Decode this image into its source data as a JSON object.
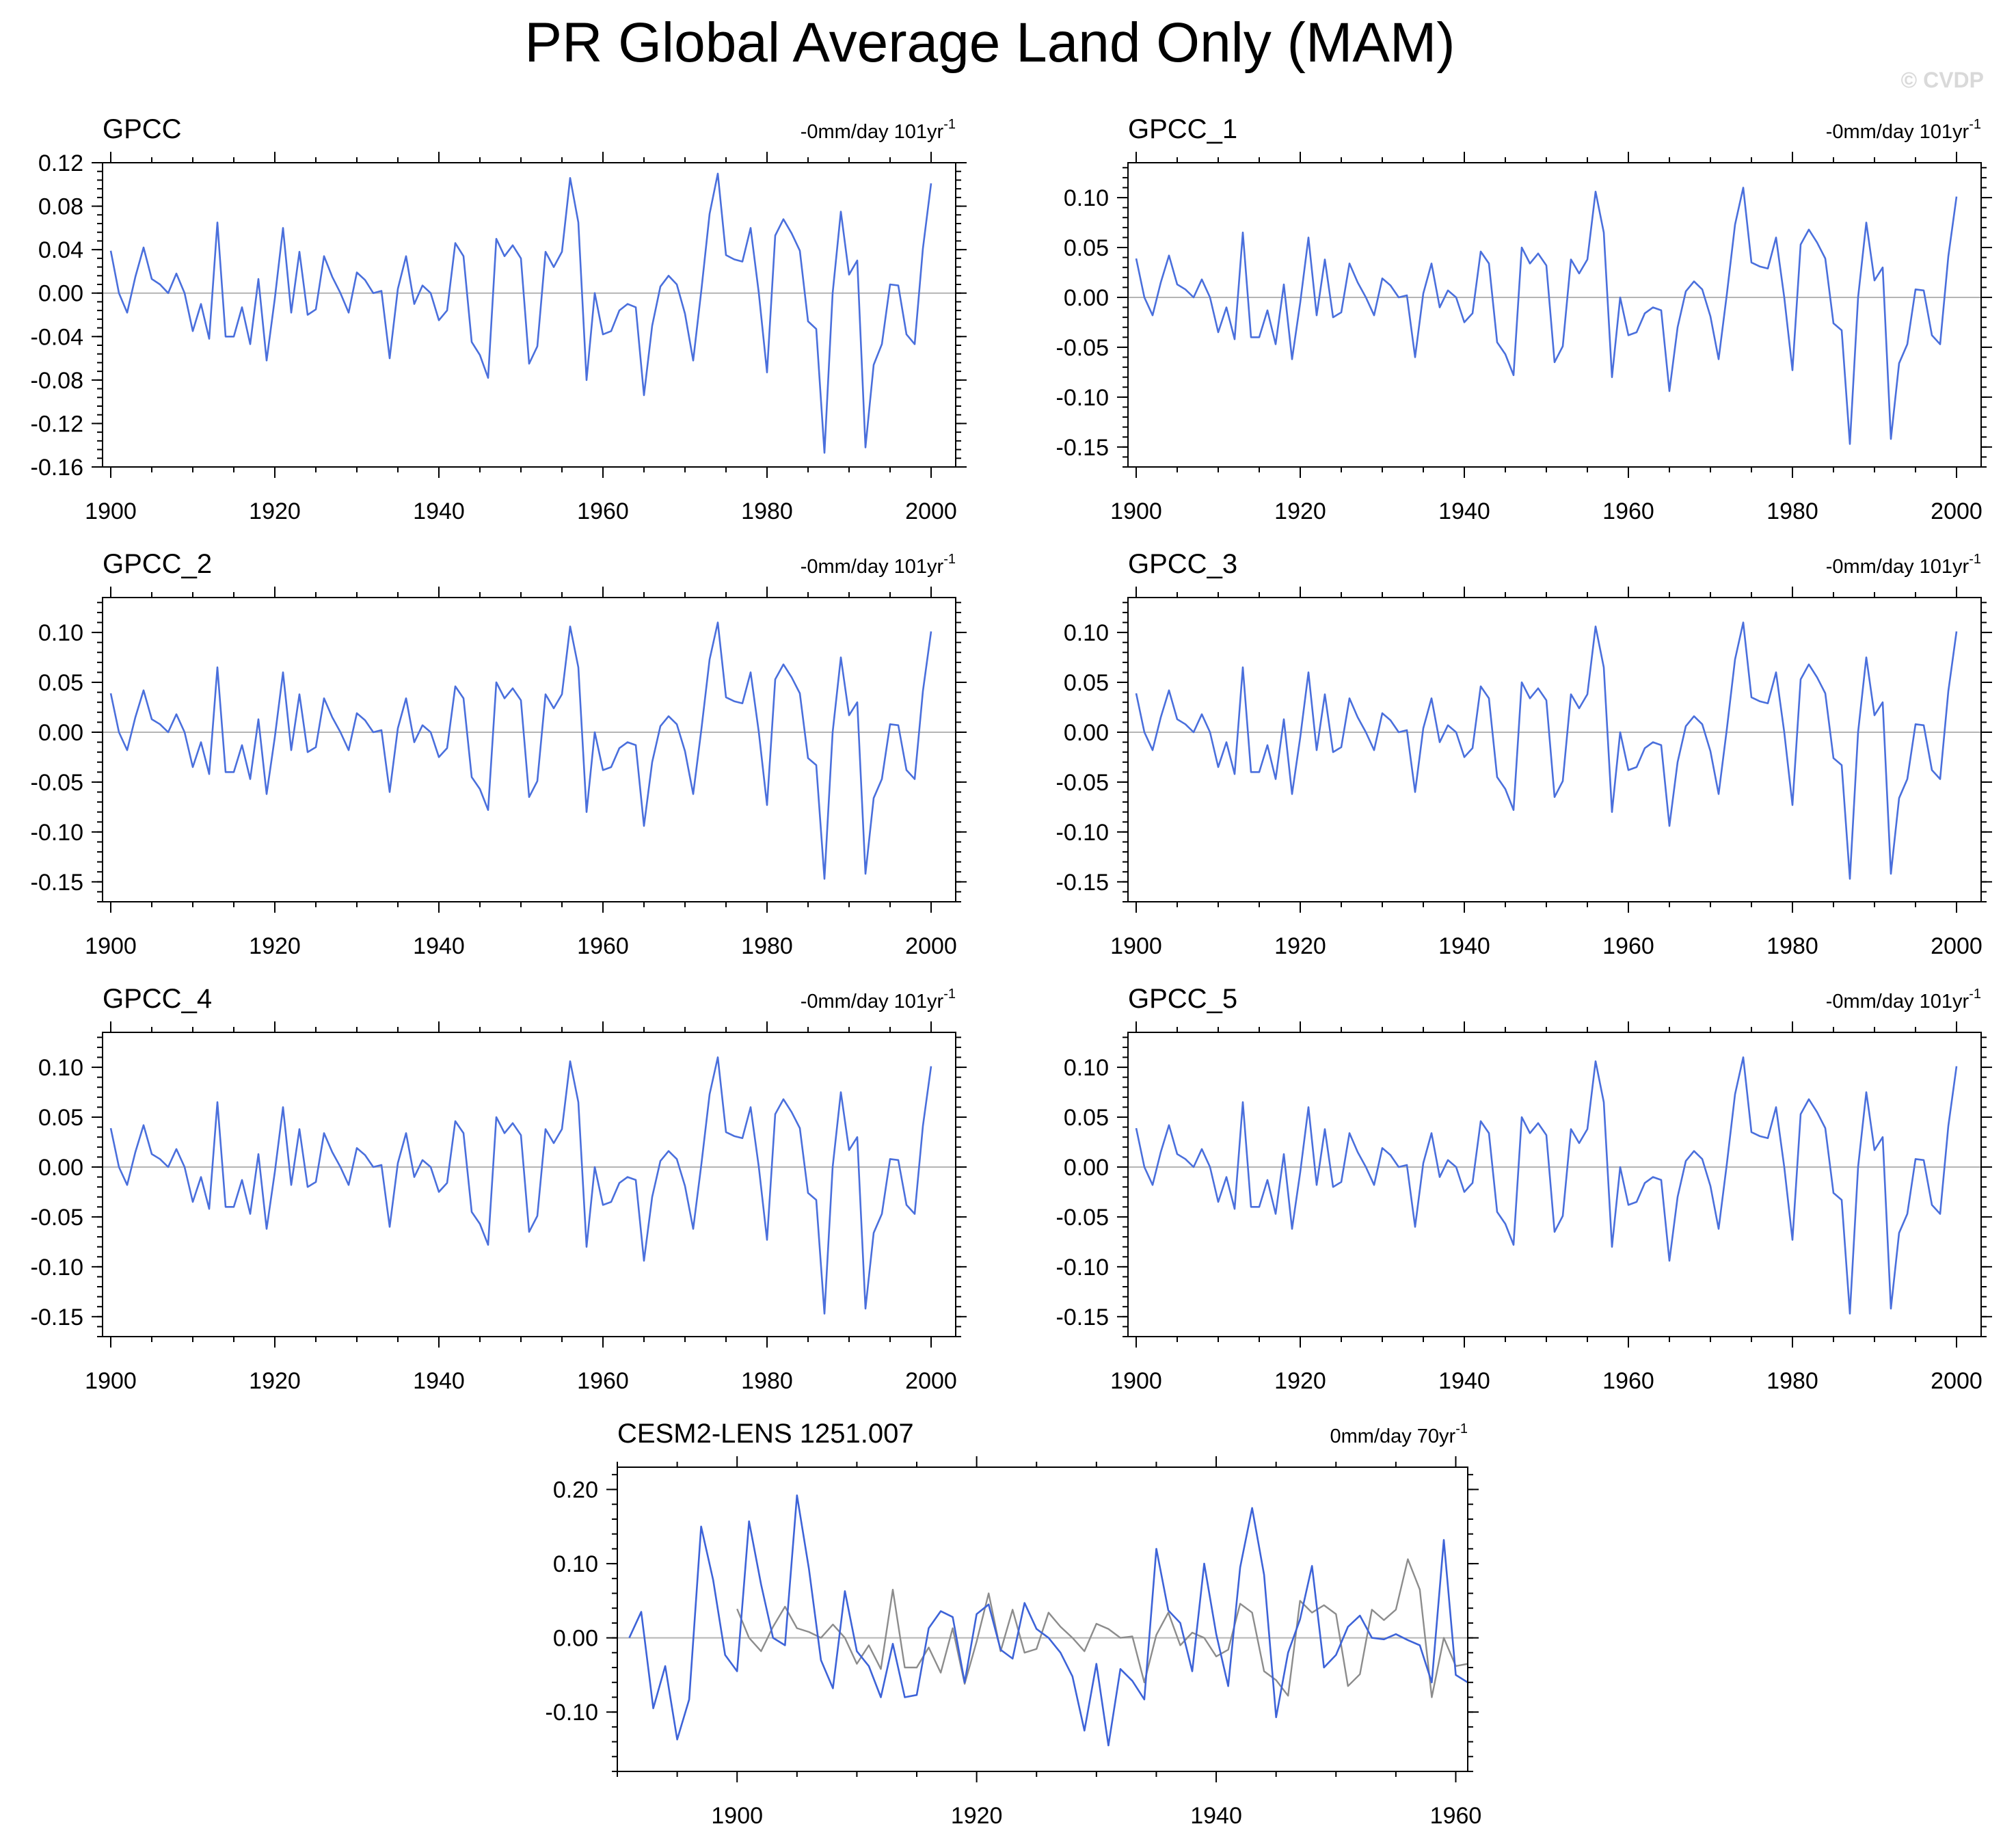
{
  "figure": {
    "title": "PR Global Average Land Only (MAM)",
    "watermark": "© CVDP"
  },
  "colors": {
    "observation": "#4a6fdc",
    "model": "#3d63d8",
    "reference": "#8c8c8c",
    "zero_line": "#b4b4b4"
  },
  "base_series": {
    "x_start": 1900,
    "values": [
      0.039,
      0.0,
      -0.018,
      0.015,
      0.042,
      0.013,
      0.008,
      0.0,
      0.018,
      0.0,
      -0.035,
      -0.01,
      -0.042,
      0.065,
      -0.04,
      -0.04,
      -0.013,
      -0.047,
      0.013,
      -0.062,
      -0.005,
      0.06,
      -0.018,
      0.038,
      -0.02,
      -0.015,
      0.034,
      0.015,
      0.0,
      -0.018,
      0.019,
      0.012,
      0.0,
      0.002,
      -0.06,
      0.004,
      0.034,
      -0.01,
      0.007,
      0.0,
      -0.025,
      -0.016,
      0.046,
      0.034,
      -0.045,
      -0.057,
      -0.078,
      0.05,
      0.034,
      0.044,
      0.032,
      -0.065,
      -0.049,
      0.038,
      0.024,
      0.038,
      0.106,
      0.065,
      -0.08,
      0.0,
      -0.038,
      -0.035,
      -0.016,
      -0.01,
      -0.013,
      -0.094,
      -0.03,
      0.006,
      0.016,
      0.008,
      -0.019,
      -0.062,
      0.003,
      0.073,
      0.11,
      0.035,
      0.031,
      0.029,
      0.06,
      0.0,
      -0.073,
      0.053,
      0.068,
      0.055,
      0.039,
      -0.026,
      -0.033,
      -0.147,
      0.0,
      0.075,
      0.017,
      0.03,
      -0.142,
      -0.066,
      -0.047,
      0.008,
      0.007,
      -0.038,
      -0.047,
      0.041,
      0.101
    ]
  },
  "chart_data": [
    {
      "type": "line",
      "panel": "GPCC",
      "title": "GPCC",
      "trend": "-0mm/day 101yr",
      "trend_exp": "-1",
      "xlim": [
        1899,
        2003
      ],
      "ylim": [
        -0.16,
        0.12
      ],
      "x_ticks": [
        1900,
        1920,
        1940,
        1960,
        1980,
        2000
      ],
      "y_ticks": [
        -0.16,
        -0.12,
        -0.08,
        -0.04,
        0.0,
        0.04,
        0.08,
        0.12
      ],
      "y_tick_labels": [
        "-0.16",
        "-0.12",
        "-0.08",
        "-0.04",
        "0.00",
        "0.04",
        "0.08",
        "0.12"
      ],
      "series": [
        {
          "ref": "base_series"
        }
      ]
    },
    {
      "type": "line",
      "panel": "GPCC_1",
      "title": "GPCC_1",
      "trend": "-0mm/day 101yr",
      "trend_exp": "-1",
      "xlim": [
        1899,
        2003
      ],
      "ylim": [
        -0.17,
        0.135
      ],
      "x_ticks": [
        1900,
        1920,
        1940,
        1960,
        1980,
        2000
      ],
      "y_ticks": [
        -0.15,
        -0.1,
        -0.05,
        0.0,
        0.05,
        0.1
      ],
      "y_tick_labels": [
        "-0.15",
        "-0.10",
        "-0.05",
        "0.00",
        "0.05",
        "0.10"
      ],
      "series": [
        {
          "ref": "base_series"
        }
      ]
    },
    {
      "type": "line",
      "panel": "GPCC_2",
      "title": "GPCC_2",
      "trend": "-0mm/day 101yr",
      "trend_exp": "-1",
      "xlim": [
        1899,
        2003
      ],
      "ylim": [
        -0.17,
        0.135
      ],
      "x_ticks": [
        1900,
        1920,
        1940,
        1960,
        1980,
        2000
      ],
      "y_ticks": [
        -0.15,
        -0.1,
        -0.05,
        0.0,
        0.05,
        0.1
      ],
      "y_tick_labels": [
        "-0.15",
        "-0.10",
        "-0.05",
        "0.00",
        "0.05",
        "0.10"
      ],
      "series": [
        {
          "ref": "base_series"
        }
      ]
    },
    {
      "type": "line",
      "panel": "GPCC_3",
      "title": "GPCC_3",
      "trend": "-0mm/day 101yr",
      "trend_exp": "-1",
      "xlim": [
        1899,
        2003
      ],
      "ylim": [
        -0.17,
        0.135
      ],
      "x_ticks": [
        1900,
        1920,
        1940,
        1960,
        1980,
        2000
      ],
      "y_ticks": [
        -0.15,
        -0.1,
        -0.05,
        0.0,
        0.05,
        0.1
      ],
      "y_tick_labels": [
        "-0.15",
        "-0.10",
        "-0.05",
        "0.00",
        "0.05",
        "0.10"
      ],
      "series": [
        {
          "ref": "base_series"
        }
      ]
    },
    {
      "type": "line",
      "panel": "GPCC_4",
      "title": "GPCC_4",
      "trend": "-0mm/day 101yr",
      "trend_exp": "-1",
      "xlim": [
        1899,
        2003
      ],
      "ylim": [
        -0.17,
        0.135
      ],
      "x_ticks": [
        1900,
        1920,
        1940,
        1960,
        1980,
        2000
      ],
      "y_ticks": [
        -0.15,
        -0.1,
        -0.05,
        0.0,
        0.05,
        0.1
      ],
      "y_tick_labels": [
        "-0.15",
        "-0.10",
        "-0.05",
        "0.00",
        "0.05",
        "0.10"
      ],
      "series": [
        {
          "ref": "base_series"
        }
      ]
    },
    {
      "type": "line",
      "panel": "GPCC_5",
      "title": "GPCC_5",
      "trend": "-0mm/day 101yr",
      "trend_exp": "-1",
      "xlim": [
        1899,
        2003
      ],
      "ylim": [
        -0.17,
        0.135
      ],
      "x_ticks": [
        1900,
        1920,
        1940,
        1960,
        1980,
        2000
      ],
      "y_ticks": [
        -0.15,
        -0.1,
        -0.05,
        0.0,
        0.05,
        0.1
      ],
      "y_tick_labels": [
        "-0.15",
        "-0.10",
        "-0.05",
        "0.00",
        "0.05",
        "0.10"
      ],
      "series": [
        {
          "ref": "base_series"
        }
      ]
    },
    {
      "type": "line",
      "panel": "CESM2-LENS",
      "title": "CESM2-LENS 1251.007",
      "trend": "0mm/day 70yr",
      "trend_exp": "-1",
      "xlim": [
        1890,
        1961
      ],
      "ylim": [
        -0.18,
        0.23
      ],
      "x_ticks": [
        1900,
        1920,
        1940,
        1960
      ],
      "y_ticks": [
        -0.1,
        0.0,
        0.1,
        0.2
      ],
      "y_tick_labels": [
        "-0.10",
        "0.00",
        "0.10",
        "0.20"
      ],
      "series": [
        {
          "x_start": 1891,
          "values": [
            0.0,
            0.035,
            -0.095,
            -0.038,
            -0.137,
            -0.083,
            0.15,
            0.078,
            -0.023,
            -0.045,
            0.157,
            0.072,
            0.0,
            -0.01,
            0.192,
            0.093,
            -0.03,
            -0.068,
            0.063,
            -0.018,
            -0.038,
            -0.08,
            -0.008,
            -0.08,
            -0.077,
            0.013,
            0.036,
            0.028,
            -0.06,
            0.032,
            0.045,
            -0.016,
            -0.028,
            0.047,
            0.012,
            0.0,
            -0.02,
            -0.052,
            -0.125,
            -0.035,
            -0.145,
            -0.042,
            -0.058,
            -0.083,
            0.12,
            0.037,
            0.02,
            -0.045,
            0.1,
            0.005,
            -0.065,
            0.095,
            0.175,
            0.085,
            -0.107,
            -0.02,
            0.025,
            0.097,
            -0.04,
            -0.023,
            0.015,
            0.03,
            0.0,
            -0.002,
            0.005,
            -0.003,
            -0.01,
            -0.06,
            0.132,
            -0.05,
            -0.06,
            -0.036
          ]
        },
        {
          "ref": "base_series",
          "role": "reference",
          "clip_to_xlim": true
        }
      ]
    }
  ]
}
